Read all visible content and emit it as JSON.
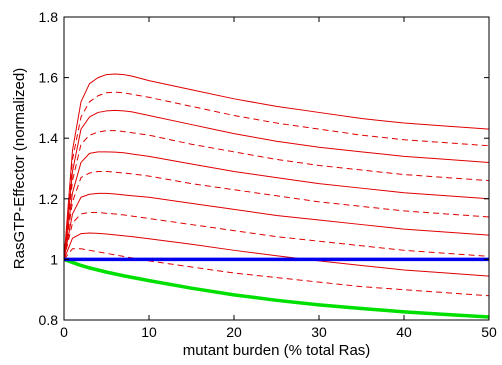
{
  "chart_data": {
    "type": "line",
    "title": "",
    "xlabel": "mutant burden (% total Ras)",
    "ylabel": "RasGTP-Effector (normalized)",
    "xlim": [
      0,
      50
    ],
    "ylim": [
      0.8,
      1.8
    ],
    "xticks": [
      0,
      10,
      20,
      30,
      40,
      50
    ],
    "yticks": [
      0.8,
      1,
      1.2,
      1.4,
      1.6,
      1.8
    ],
    "grid": false,
    "legend": "none",
    "series": [
      {
        "color": "#e00000",
        "style": "solid",
        "x": [
          0,
          1,
          2,
          3,
          4,
          5,
          6,
          7,
          8,
          10,
          15,
          20,
          25,
          30,
          35,
          40,
          45,
          50
        ],
        "y": [
          1.0,
          1.36,
          1.52,
          1.58,
          1.6,
          1.61,
          1.612,
          1.61,
          1.605,
          1.59,
          1.56,
          1.53,
          1.505,
          1.485,
          1.465,
          1.45,
          1.44,
          1.43
        ]
      },
      {
        "color": "#e00000",
        "style": "dashed",
        "x": [
          0,
          1,
          2,
          3,
          4,
          5,
          6,
          7,
          8,
          10,
          15,
          20,
          25,
          30,
          35,
          40,
          45,
          50
        ],
        "y": [
          1.0,
          1.33,
          1.47,
          1.52,
          1.54,
          1.55,
          1.552,
          1.55,
          1.545,
          1.535,
          1.505,
          1.475,
          1.45,
          1.43,
          1.41,
          1.395,
          1.385,
          1.375
        ]
      },
      {
        "color": "#e00000",
        "style": "solid",
        "x": [
          0,
          1,
          2,
          3,
          4,
          5,
          6,
          7,
          8,
          10,
          15,
          20,
          25,
          30,
          35,
          40,
          45,
          50
        ],
        "y": [
          1.0,
          1.29,
          1.43,
          1.47,
          1.485,
          1.49,
          1.492,
          1.49,
          1.487,
          1.475,
          1.445,
          1.415,
          1.39,
          1.37,
          1.355,
          1.34,
          1.33,
          1.32
        ]
      },
      {
        "color": "#e00000",
        "style": "dashed",
        "x": [
          0,
          1,
          2,
          3,
          4,
          5,
          6,
          7,
          8,
          10,
          15,
          20,
          25,
          30,
          35,
          40,
          45,
          50
        ],
        "y": [
          1.0,
          1.26,
          1.38,
          1.41,
          1.42,
          1.425,
          1.425,
          1.422,
          1.418,
          1.41,
          1.38,
          1.355,
          1.33,
          1.31,
          1.295,
          1.28,
          1.27,
          1.26
        ]
      },
      {
        "color": "#e00000",
        "style": "solid",
        "x": [
          0,
          1,
          2,
          3,
          4,
          5,
          6,
          7,
          8,
          10,
          15,
          20,
          25,
          30,
          35,
          40,
          45,
          50
        ],
        "y": [
          1.0,
          1.22,
          1.32,
          1.35,
          1.355,
          1.355,
          1.354,
          1.352,
          1.348,
          1.34,
          1.315,
          1.29,
          1.27,
          1.25,
          1.235,
          1.22,
          1.21,
          1.2
        ]
      },
      {
        "color": "#e00000",
        "style": "dashed",
        "x": [
          0,
          1,
          2,
          3,
          4,
          5,
          6,
          7,
          8,
          10,
          15,
          20,
          25,
          30,
          35,
          40,
          45,
          50
        ],
        "y": [
          1.0,
          1.19,
          1.27,
          1.285,
          1.29,
          1.29,
          1.288,
          1.285,
          1.282,
          1.275,
          1.25,
          1.23,
          1.21,
          1.19,
          1.175,
          1.16,
          1.15,
          1.14
        ]
      },
      {
        "color": "#e00000",
        "style": "solid",
        "x": [
          0,
          1,
          2,
          3,
          4,
          5,
          6,
          7,
          8,
          10,
          15,
          20,
          25,
          30,
          35,
          40,
          45,
          50
        ],
        "y": [
          1.0,
          1.15,
          1.205,
          1.215,
          1.218,
          1.218,
          1.216,
          1.213,
          1.21,
          1.205,
          1.185,
          1.165,
          1.145,
          1.13,
          1.115,
          1.1,
          1.09,
          1.08
        ]
      },
      {
        "color": "#e00000",
        "style": "dashed",
        "x": [
          0,
          1,
          2,
          3,
          4,
          5,
          6,
          7,
          8,
          10,
          15,
          20,
          25,
          30,
          35,
          40,
          45,
          50
        ],
        "y": [
          1.0,
          1.12,
          1.15,
          1.155,
          1.155,
          1.152,
          1.15,
          1.147,
          1.143,
          1.135,
          1.115,
          1.095,
          1.075,
          1.06,
          1.045,
          1.03,
          1.02,
          1.01
        ]
      },
      {
        "color": "#e00000",
        "style": "solid",
        "x": [
          0,
          1,
          2,
          3,
          4,
          5,
          6,
          7,
          8,
          10,
          15,
          20,
          25,
          30,
          35,
          40,
          45,
          50
        ],
        "y": [
          1.0,
          1.07,
          1.085,
          1.087,
          1.086,
          1.084,
          1.081,
          1.078,
          1.075,
          1.068,
          1.05,
          1.03,
          1.012,
          0.995,
          0.98,
          0.965,
          0.955,
          0.945
        ]
      },
      {
        "color": "#e00000",
        "style": "dashed",
        "x": [
          0,
          1,
          2,
          3,
          4,
          5,
          6,
          7,
          8,
          10,
          15,
          20,
          25,
          30,
          35,
          40,
          45,
          50
        ],
        "y": [
          1.0,
          1.035,
          1.035,
          1.03,
          1.025,
          1.02,
          1.015,
          1.01,
          1.005,
          0.995,
          0.975,
          0.955,
          0.94,
          0.925,
          0.91,
          0.9,
          0.89,
          0.88
        ]
      },
      {
        "color": "#0000ee",
        "style": "thick",
        "x": [
          0,
          50
        ],
        "y": [
          1.0,
          1.0
        ]
      },
      {
        "color": "#00e000",
        "style": "thick",
        "x": [
          0,
          1,
          2,
          3,
          5,
          7,
          10,
          15,
          20,
          25,
          30,
          35,
          40,
          45,
          50
        ],
        "y": [
          1.0,
          0.99,
          0.98,
          0.972,
          0.958,
          0.946,
          0.93,
          0.905,
          0.883,
          0.865,
          0.85,
          0.838,
          0.827,
          0.818,
          0.81
        ]
      }
    ]
  }
}
